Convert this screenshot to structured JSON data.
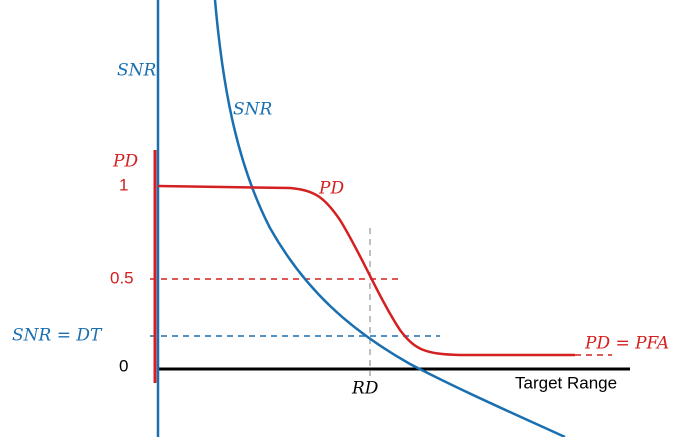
{
  "axes": {
    "snr_axis": "SNR",
    "pd_axis": "PD",
    "x_axis": "Target Range"
  },
  "pd_ticks": [
    "1",
    "0.5",
    "0"
  ],
  "annotations": {
    "snr_curve": "SNR",
    "pd_curve": "PD",
    "snr_dt": "SNR = DT",
    "rd": "RD",
    "pd_pfa": "PD = PFA"
  }
}
